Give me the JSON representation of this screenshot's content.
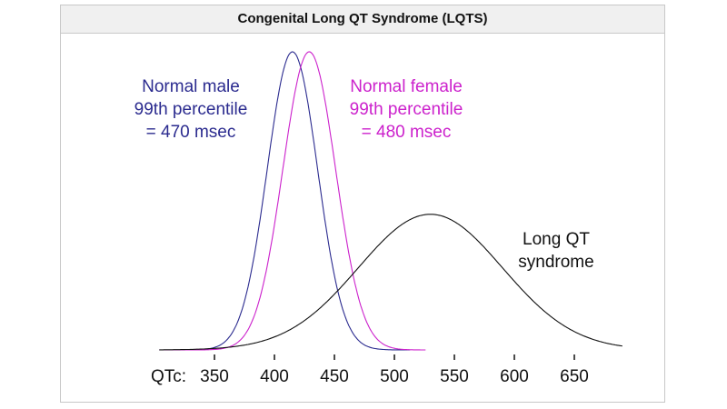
{
  "chart_data": {
    "type": "line",
    "title": "Congenital Long QT Syndrome (LQTS)",
    "xlabel": "QTc:",
    "xlim": [
      304,
      690
    ],
    "xticks": [
      350,
      400,
      450,
      500,
      550,
      600,
      650
    ],
    "grid": false,
    "legend": "none",
    "series": [
      {
        "key": "male",
        "color": "#2b2b8f",
        "mean": 415,
        "sd": 21,
        "peak": 1.0,
        "range": [
          304,
          513
        ],
        "annotation": [
          "Normal male",
          "99th percentile",
          "= 470 msec"
        ]
      },
      {
        "key": "female",
        "color": "#cc22cc",
        "mean": 429,
        "sd": 22,
        "peak": 1.0,
        "range": [
          304,
          526
        ],
        "annotation": [
          "Normal female",
          "99th percentile",
          "= 480 msec"
        ]
      },
      {
        "key": "lqts",
        "color": "#111111",
        "mean": 530,
        "sd": 60,
        "peak": 0.455,
        "range": [
          304,
          690
        ],
        "annotation": [
          "Long QT",
          "syndrome"
        ]
      }
    ]
  }
}
